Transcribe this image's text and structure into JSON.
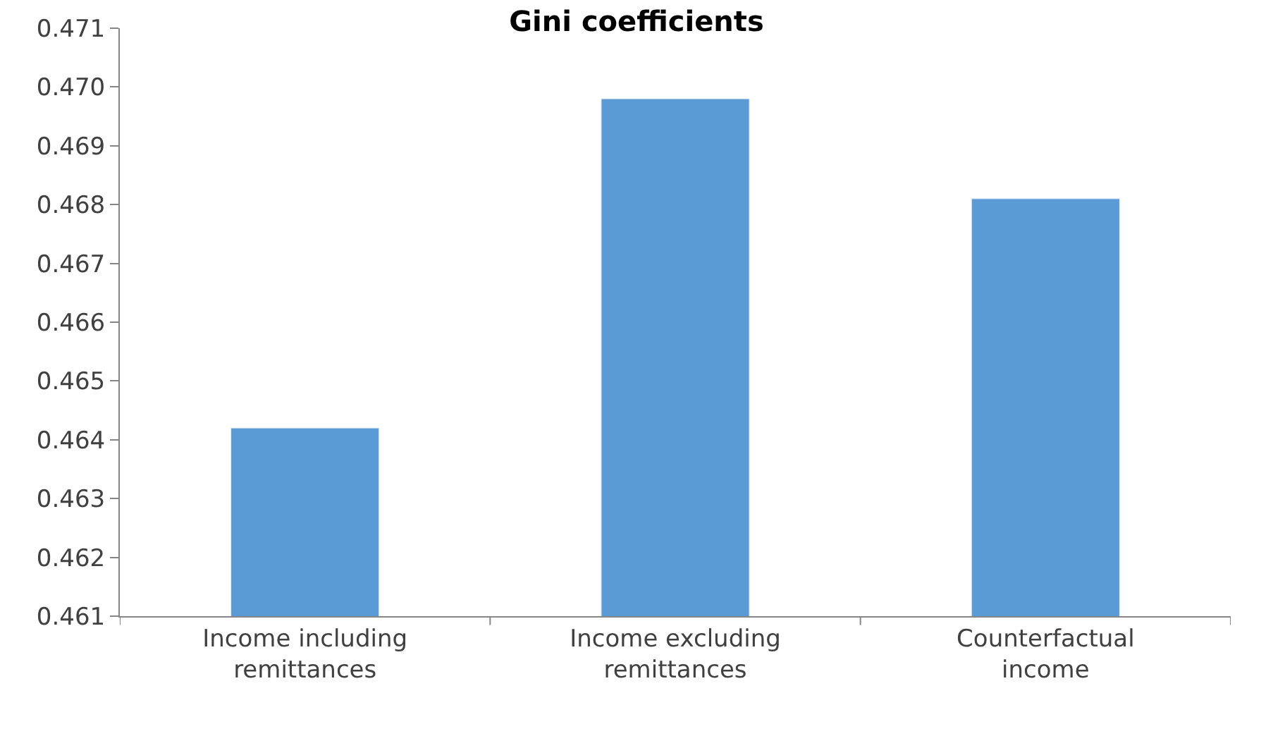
{
  "chart_data": {
    "type": "bar",
    "title": "Gini coefficients",
    "categories": [
      "Income including remittances",
      "Income excluding remittances",
      "Counterfactual income"
    ],
    "values": [
      0.4642,
      0.4698,
      0.4681
    ],
    "color": "#5b9bd5",
    "ylim": [
      0.461,
      0.471
    ],
    "yticks": [
      0.461,
      0.462,
      0.463,
      0.464,
      0.465,
      0.466,
      0.467,
      0.468,
      0.469,
      {
        "value": 0.47,
        "label": "0.470"
      },
      0.471
    ]
  }
}
